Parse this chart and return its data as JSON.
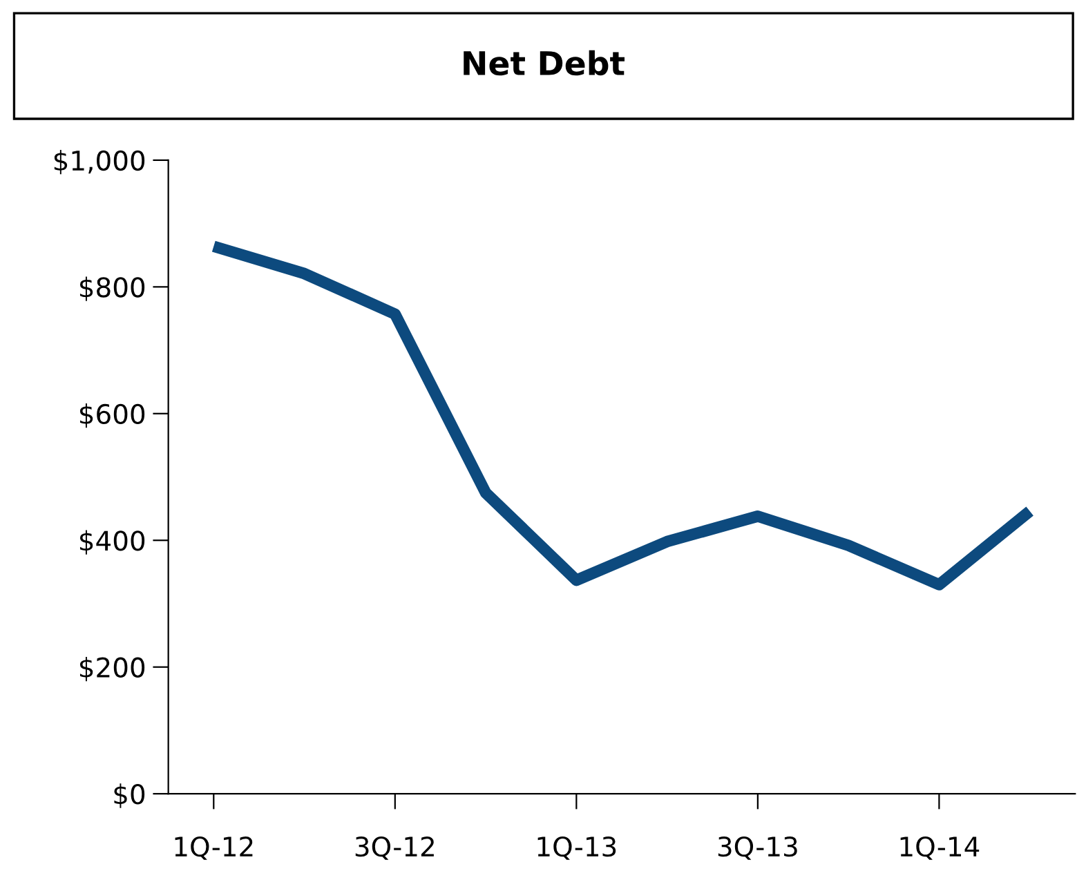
{
  "chart_data": {
    "type": "line",
    "title": "Net Debt",
    "categories": [
      "1Q-12",
      null,
      "3Q-12",
      null,
      "1Q-13",
      null,
      "3Q-13",
      null,
      "1Q-14",
      null
    ],
    "series": [
      {
        "color": "#0d4a7e",
        "values": [
          864,
          821,
          757,
          475,
          337,
          398,
          438,
          392,
          330,
          446
        ]
      }
    ],
    "ylim": [
      0,
      1000
    ],
    "yticks": [
      {
        "value": 0,
        "label": "$0"
      },
      {
        "value": 200,
        "label": "$200"
      },
      {
        "value": 400,
        "label": "$400"
      },
      {
        "value": 600,
        "label": "$600"
      },
      {
        "value": 800,
        "label": "$800"
      },
      {
        "value": 1000,
        "label": "$1,000"
      }
    ],
    "grid": false,
    "legend": false,
    "marker": "none",
    "line_style": "solid"
  }
}
